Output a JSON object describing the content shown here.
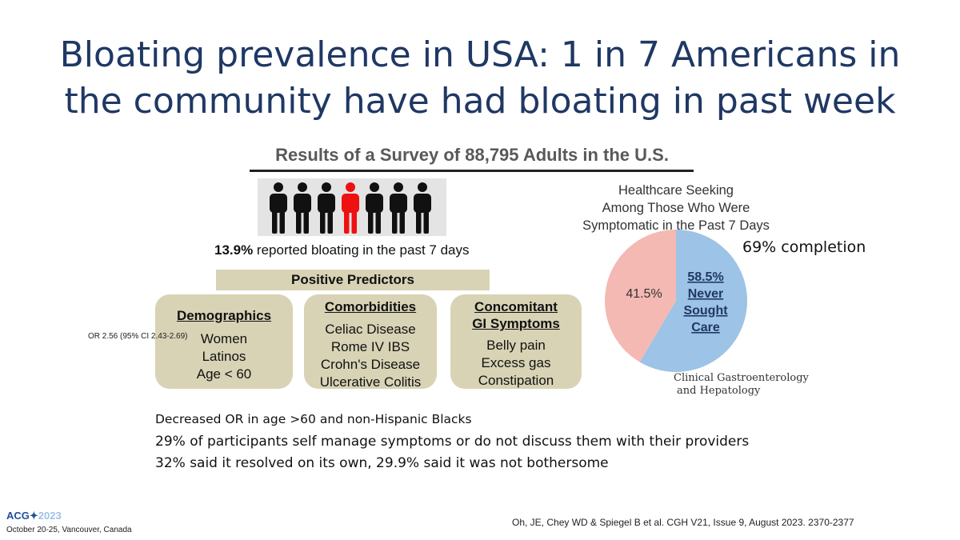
{
  "slide": {
    "title_line1": "Bloating prevalence in USA: 1 in 7 Americans in",
    "title_line2": "the community have had bloating in past week"
  },
  "figure": {
    "heading": "Results of a Survey of 88,795 Adults in the U.S.",
    "people_total": 7,
    "people_highlighted_index": 3,
    "colors": {
      "person": "#111111",
      "person_highlight": "#ee1111",
      "box": "#d8d3b5",
      "pie_blue": "#9dc3e6",
      "pie_pink": "#f4b9b2"
    },
    "reported_value": "13.9%",
    "reported_text": " reported bloating in the past 7 days",
    "predictors_label": "Positive Predictors",
    "predictor_boxes": [
      {
        "heading": "Demographics",
        "items": [
          "Women",
          "Latinos",
          "Age < 60"
        ]
      },
      {
        "heading": "Comorbidities",
        "items": [
          "Celiac Disease",
          "Rome IV IBS",
          "Crohn's Disease",
          "Ulcerative Colitis"
        ]
      },
      {
        "heading_line1": "Concomitant",
        "heading_line2": "GI Symptoms",
        "items": [
          "Belly pain",
          "Excess gas",
          "Constipation"
        ]
      }
    ],
    "or_note": "OR 2.56 (95% CI 2.43-2.69)"
  },
  "healthcare": {
    "title_line1": "Healthcare Seeking",
    "title_line2": "Among Those Who Were",
    "title_line3": "Symptomatic in the Past 7 Days",
    "completion": "69% completion",
    "journal_line1": "Clinical Gastroenterology",
    "journal_line2": "and Hepatology"
  },
  "chart_data": {
    "type": "pie",
    "title": "Healthcare Seeking Among Those Who Were Symptomatic in the Past 7 Days",
    "slices": [
      {
        "label": "Never Sought Care",
        "value": 58.5,
        "value_label": "58.5%",
        "label_line1": "Never",
        "label_line2": "Sought",
        "label_line3": "Care",
        "color": "#9dc3e6"
      },
      {
        "label": "",
        "value": 41.5,
        "value_label": "41.5%",
        "color": "#f4b9b2"
      }
    ]
  },
  "stats": {
    "line1": "Decreased OR in age >60 and non-Hispanic Blacks",
    "line2": "29% of participants self manage symptoms or do not discuss them with their providers",
    "line3": "32% said it resolved on its own, 29.9% said it was not bothersome"
  },
  "footer": {
    "logo_acg": "ACG",
    "logo_year": "2023",
    "conference": "October 20-25, Vancouver, Canada",
    "citation": "Oh, JE, Chey WD & Spiegel B et al. CGH V21, Issue 9, August 2023. 2370-2377"
  }
}
